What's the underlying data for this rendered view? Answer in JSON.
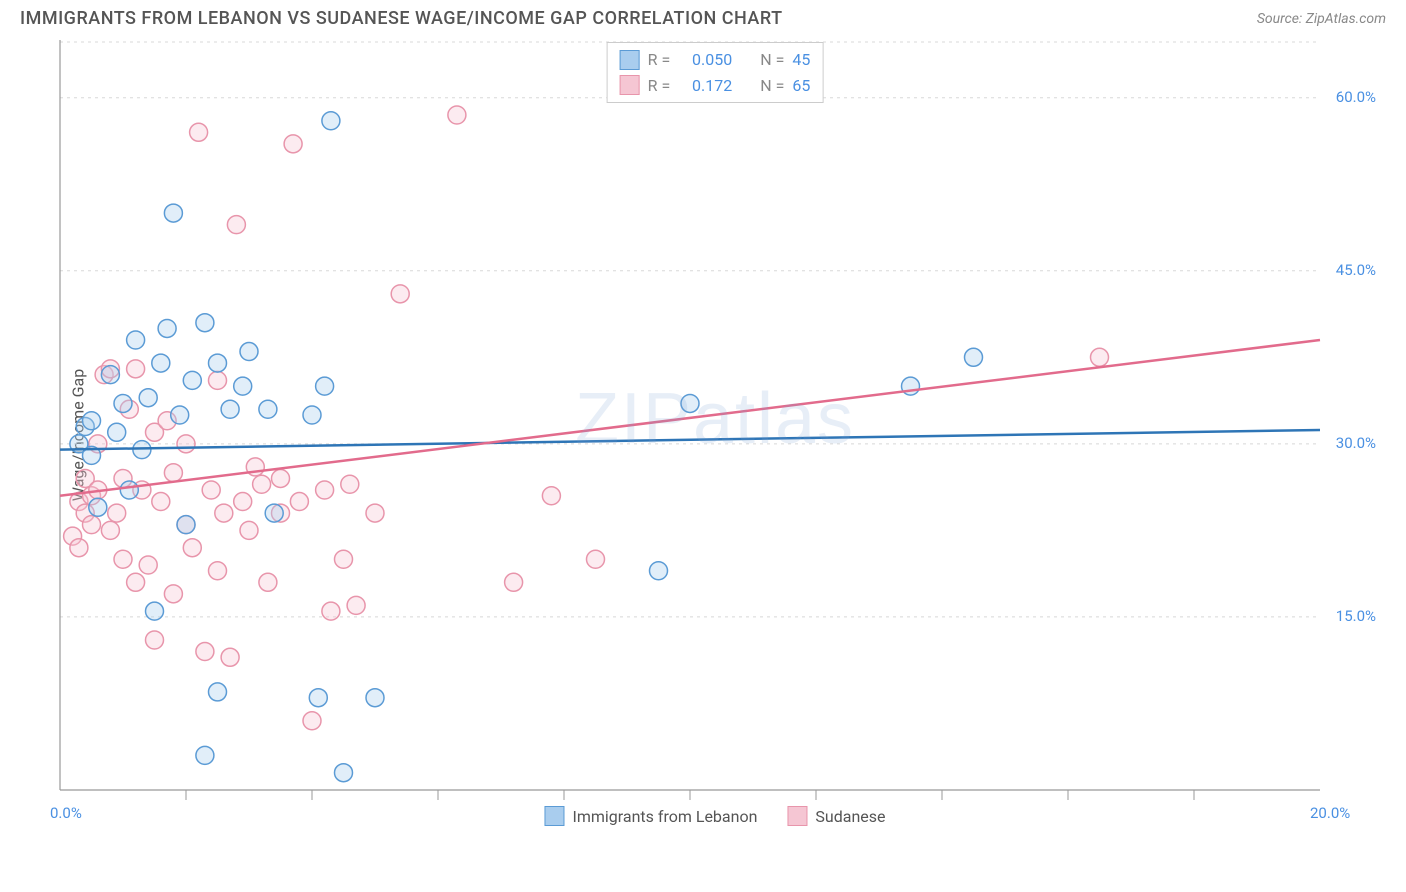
{
  "title": "IMMIGRANTS FROM LEBANON VS SUDANESE WAGE/INCOME GAP CORRELATION CHART",
  "source": "Source: ZipAtlas.com",
  "watermark": "ZIPatlas",
  "y_axis_label": "Wage/Income Gap",
  "chart": {
    "type": "scatter",
    "xlim": [
      0,
      20
    ],
    "ylim": [
      0,
      65
    ],
    "x_ticks": [
      0,
      20
    ],
    "x_tick_labels": [
      "0.0%",
      "20.0%"
    ],
    "x_minor_ticks": [
      2,
      4,
      6,
      8,
      10,
      12,
      14,
      16,
      18
    ],
    "y_ticks": [
      15,
      30,
      45,
      60
    ],
    "y_tick_labels": [
      "15.0%",
      "30.0%",
      "45.0%",
      "60.0%"
    ],
    "y_minor_grid": [
      15,
      30,
      45,
      60
    ],
    "grid_color": "#d8d8d8",
    "axis_color": "#999",
    "background_color": "#ffffff",
    "marker_radius": 9,
    "marker_stroke_width": 1.5,
    "marker_fill_opacity": 0.35,
    "series": [
      {
        "name": "Immigrants from Lebanon",
        "color_stroke": "#5b9bd5",
        "color_fill": "#a9cdee",
        "line_color": "#2e75b6",
        "R": "0.050",
        "N": "45",
        "trend": {
          "x1": 0,
          "y1": 29.5,
          "x2": 20,
          "y2": 31.2
        },
        "points": [
          [
            0.3,
            30
          ],
          [
            0.4,
            31.5
          ],
          [
            0.5,
            29
          ],
          [
            0.5,
            32
          ],
          [
            0.6,
            24.5
          ],
          [
            0.8,
            36
          ],
          [
            0.9,
            31
          ],
          [
            1.0,
            33.5
          ],
          [
            1.1,
            26
          ],
          [
            1.2,
            39
          ],
          [
            1.3,
            29.5
          ],
          [
            1.4,
            34
          ],
          [
            1.5,
            15.5
          ],
          [
            1.6,
            37
          ],
          [
            1.7,
            40
          ],
          [
            1.8,
            50
          ],
          [
            1.9,
            32.5
          ],
          [
            2.0,
            23
          ],
          [
            2.1,
            35.5
          ],
          [
            2.3,
            40.5
          ],
          [
            2.3,
            3
          ],
          [
            2.5,
            37
          ],
          [
            2.5,
            8.5
          ],
          [
            2.7,
            33
          ],
          [
            2.9,
            35
          ],
          [
            3.0,
            38
          ],
          [
            3.3,
            33
          ],
          [
            3.4,
            24
          ],
          [
            4.0,
            32.5
          ],
          [
            4.1,
            8
          ],
          [
            4.2,
            35
          ],
          [
            4.3,
            58
          ],
          [
            4.5,
            1.5
          ],
          [
            5.0,
            8
          ],
          [
            9.5,
            19
          ],
          [
            10.0,
            33.5
          ],
          [
            13.5,
            35
          ],
          [
            14.5,
            37.5
          ]
        ]
      },
      {
        "name": "Sudanese",
        "color_stroke": "#e895ab",
        "color_fill": "#f5c6d3",
        "line_color": "#e26b8c",
        "R": "0.172",
        "N": "65",
        "trend": {
          "x1": 0,
          "y1": 25.5,
          "x2": 20,
          "y2": 39
        },
        "points": [
          [
            0.2,
            22
          ],
          [
            0.3,
            21
          ],
          [
            0.3,
            25
          ],
          [
            0.4,
            24
          ],
          [
            0.4,
            27
          ],
          [
            0.5,
            25.5
          ],
          [
            0.5,
            23
          ],
          [
            0.6,
            26
          ],
          [
            0.6,
            30
          ],
          [
            0.7,
            36
          ],
          [
            0.8,
            22.5
          ],
          [
            0.8,
            36.5
          ],
          [
            0.9,
            24
          ],
          [
            1.0,
            20
          ],
          [
            1.0,
            27
          ],
          [
            1.1,
            33
          ],
          [
            1.2,
            18
          ],
          [
            1.2,
            36.5
          ],
          [
            1.3,
            26
          ],
          [
            1.4,
            19.5
          ],
          [
            1.5,
            31
          ],
          [
            1.5,
            13
          ],
          [
            1.6,
            25
          ],
          [
            1.7,
            32
          ],
          [
            1.8,
            17
          ],
          [
            1.8,
            27.5
          ],
          [
            2.0,
            23
          ],
          [
            2.0,
            30
          ],
          [
            2.1,
            21
          ],
          [
            2.2,
            57
          ],
          [
            2.3,
            12
          ],
          [
            2.4,
            26
          ],
          [
            2.5,
            19
          ],
          [
            2.5,
            35.5
          ],
          [
            2.6,
            24
          ],
          [
            2.7,
            11.5
          ],
          [
            2.8,
            49
          ],
          [
            2.9,
            25
          ],
          [
            3.0,
            22.5
          ],
          [
            3.1,
            28
          ],
          [
            3.2,
            26.5
          ],
          [
            3.3,
            18
          ],
          [
            3.5,
            27
          ],
          [
            3.5,
            24
          ],
          [
            3.7,
            56
          ],
          [
            3.8,
            25
          ],
          [
            4.0,
            6
          ],
          [
            4.2,
            26
          ],
          [
            4.3,
            15.5
          ],
          [
            4.5,
            20
          ],
          [
            4.6,
            26.5
          ],
          [
            4.7,
            16
          ],
          [
            5.0,
            24
          ],
          [
            5.4,
            43
          ],
          [
            6.3,
            58.5
          ],
          [
            7.2,
            18
          ],
          [
            7.8,
            25.5
          ],
          [
            8.5,
            20
          ],
          [
            16.5,
            37.5
          ]
        ]
      }
    ]
  },
  "legend_top": {
    "R_label": "R =",
    "N_label": "N ="
  },
  "colors": {
    "tick_label": "#4a90e2",
    "title": "#555",
    "source": "#888"
  }
}
